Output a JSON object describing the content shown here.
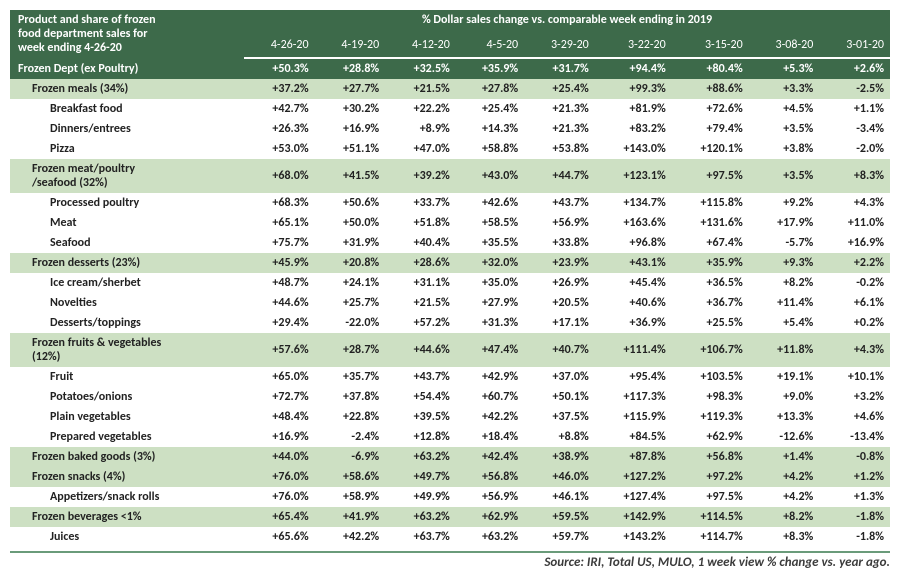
{
  "header": {
    "product_title_l1": "Product and share of frozen",
    "product_title_l2": "food department sales for",
    "product_title_l3": "week ending 4-26-20",
    "percent_title": "% Dollar sales change vs. comparable week ending  in 2019"
  },
  "dates": [
    "4-26-20",
    "4-19-20",
    "4-12-20",
    "4-5-20",
    "3-29-20",
    "3-22-20",
    "3-15-20",
    "3-08-20",
    "3-01-20"
  ],
  "rows": [
    {
      "type": "total",
      "indent": 0,
      "label": "Frozen Dept (ex Poultry)",
      "v": [
        "+50.3%",
        "+28.8%",
        "+32.5%",
        "+35.9%",
        "+31.7%",
        "+94.4%",
        "+80.4%",
        "+5.3%",
        "+2.6%"
      ]
    },
    {
      "type": "cat",
      "indent": 1,
      "label": "Frozen meals (34%)",
      "v": [
        "+37.2%",
        "+27.7%",
        "+21.5%",
        "+27.8%",
        "+25.4%",
        "+99.3%",
        "+88.6%",
        "+3.3%",
        "-2.5%"
      ]
    },
    {
      "type": "sub",
      "indent": 2,
      "label": "Breakfast food",
      "v": [
        "+42.7%",
        "+30.2%",
        "+22.2%",
        "+25.4%",
        "+21.3%",
        "+81.9%",
        "+72.6%",
        "+4.5%",
        "+1.1%"
      ]
    },
    {
      "type": "sub",
      "indent": 2,
      "label": "Dinners/entrees",
      "v": [
        "+26.3%",
        "+16.9%",
        "+8.9%",
        "+14.3%",
        "+21.3%",
        "+83.2%",
        "+79.4%",
        "+3.5%",
        "-3.4%"
      ]
    },
    {
      "type": "sub",
      "indent": 2,
      "label": "Pizza",
      "v": [
        "+53.0%",
        "+51.1%",
        "+47.0%",
        "+58.8%",
        "+53.8%",
        "+143.0%",
        "+120.1%",
        "+3.8%",
        "-2.0%"
      ]
    },
    {
      "type": "cat",
      "indent": 1,
      "label": "Frozen meat/poultry /seafood (32%)",
      "v": [
        "+68.0%",
        "+41.5%",
        "+39.2%",
        "+43.0%",
        "+44.7%",
        "+123.1%",
        "+97.5%",
        "+3.5%",
        "+8.3%"
      ]
    },
    {
      "type": "sub",
      "indent": 2,
      "label": "Processed poultry",
      "v": [
        "+68.3%",
        "+50.6%",
        "+33.7%",
        "+42.6%",
        "+43.7%",
        "+134.7%",
        "+115.8%",
        "+9.2%",
        "+4.3%"
      ]
    },
    {
      "type": "sub",
      "indent": 2,
      "label": "Meat",
      "v": [
        "+65.1%",
        "+50.0%",
        "+51.8%",
        "+58.5%",
        "+56.9%",
        "+163.6%",
        "+131.6%",
        "+17.9%",
        "+11.0%"
      ]
    },
    {
      "type": "sub",
      "indent": 2,
      "label": "Seafood",
      "v": [
        "+75.7%",
        "+31.9%",
        "+40.4%",
        "+35.5%",
        "+33.8%",
        "+96.8%",
        "+67.4%",
        "-5.7%",
        "+16.9%"
      ]
    },
    {
      "type": "cat",
      "indent": 1,
      "label": "Frozen desserts (23%)",
      "v": [
        "+45.9%",
        "+20.8%",
        "+28.6%",
        "+32.0%",
        "+23.9%",
        "+43.1%",
        "+35.9%",
        "+9.3%",
        "+2.2%"
      ]
    },
    {
      "type": "sub",
      "indent": 2,
      "label": "Ice cream/sherbet",
      "v": [
        "+48.7%",
        "+24.1%",
        "+31.1%",
        "+35.0%",
        "+26.9%",
        "+45.4%",
        "+36.5%",
        "+8.2%",
        "-0.2%"
      ]
    },
    {
      "type": "sub",
      "indent": 2,
      "label": "Novelties",
      "v": [
        "+44.6%",
        "+25.7%",
        "+21.5%",
        "+27.9%",
        "+20.5%",
        "+40.6%",
        "+36.7%",
        "+11.4%",
        "+6.1%"
      ]
    },
    {
      "type": "sub",
      "indent": 2,
      "label": "Desserts/toppings",
      "v": [
        "+29.4%",
        "-22.0%",
        "+57.2%",
        "+31.3%",
        "+17.1%",
        "+36.9%",
        "+25.5%",
        "+5.4%",
        "+0.2%"
      ]
    },
    {
      "type": "cat",
      "indent": 1,
      "label": "Frozen fruits & vegetables (12%)",
      "v": [
        "+57.6%",
        "+28.7%",
        "+44.6%",
        "+47.4%",
        "+40.7%",
        "+111.4%",
        "+106.7%",
        "+11.8%",
        "+4.3%"
      ]
    },
    {
      "type": "sub",
      "indent": 2,
      "label": "Fruit",
      "v": [
        "+65.0%",
        "+35.7%",
        "+43.7%",
        "+42.9%",
        "+37.0%",
        "+95.4%",
        "+103.5%",
        "+19.1%",
        "+10.1%"
      ]
    },
    {
      "type": "sub",
      "indent": 2,
      "label": "Potatoes/onions",
      "v": [
        "+72.7%",
        "+37.8%",
        "+54.4%",
        "+60.7%",
        "+50.1%",
        "+117.3%",
        "+98.3%",
        "+9.0%",
        "+3.2%"
      ]
    },
    {
      "type": "sub",
      "indent": 2,
      "label": "Plain vegetables",
      "v": [
        "+48.4%",
        "+22.8%",
        "+39.5%",
        "+42.2%",
        "+37.5%",
        "+115.9%",
        "+119.3%",
        "+13.3%",
        "+4.6%"
      ]
    },
    {
      "type": "sub",
      "indent": 2,
      "label": "Prepared vegetables",
      "v": [
        "+16.9%",
        "-2.4%",
        "+12.8%",
        "+18.4%",
        "+8.8%",
        "+84.5%",
        "+62.9%",
        "-12.6%",
        "-13.4%"
      ]
    },
    {
      "type": "cat",
      "indent": 1,
      "label": "Frozen baked goods (3%)",
      "v": [
        "+44.0%",
        "-6.9%",
        "+63.2%",
        "+42.4%",
        "+38.9%",
        "+87.8%",
        "+56.8%",
        "+1.4%",
        "-0.8%"
      ]
    },
    {
      "type": "cat",
      "indent": 1,
      "label": "Frozen snacks (4%)",
      "v": [
        "+76.0%",
        "+58.6%",
        "+49.7%",
        "+56.8%",
        "+46.0%",
        "+127.2%",
        "+97.2%",
        "+4.2%",
        "+1.2%"
      ]
    },
    {
      "type": "sub",
      "indent": 2,
      "label": "Appetizers/snack rolls",
      "v": [
        "+76.0%",
        "+58.9%",
        "+49.9%",
        "+56.9%",
        "+46.1%",
        "+127.4%",
        "+97.5%",
        "+4.2%",
        "+1.3%"
      ]
    },
    {
      "type": "cat",
      "indent": 1,
      "label": "Frozen beverages <1%",
      "v": [
        "+65.4%",
        "+41.9%",
        "+63.2%",
        "+62.9%",
        "+59.5%",
        "+142.9%",
        "+114.5%",
        "+8.2%",
        "-1.8%"
      ]
    },
    {
      "type": "sub",
      "indent": 2,
      "label": "Juices",
      "v": [
        "+65.6%",
        "+42.2%",
        "+63.7%",
        "+63.2%",
        "+59.7%",
        "+143.2%",
        "+114.7%",
        "+8.3%",
        "-1.8%"
      ]
    }
  ],
  "source": "Source: IRI, Total US, MULO, 1 week view % change vs. year ago.",
  "colors": {
    "header_bg": "#3d6a4a",
    "header_fg": "#ffffff",
    "cat_bg": "#cde0c3",
    "border": "#6a9b7a"
  }
}
